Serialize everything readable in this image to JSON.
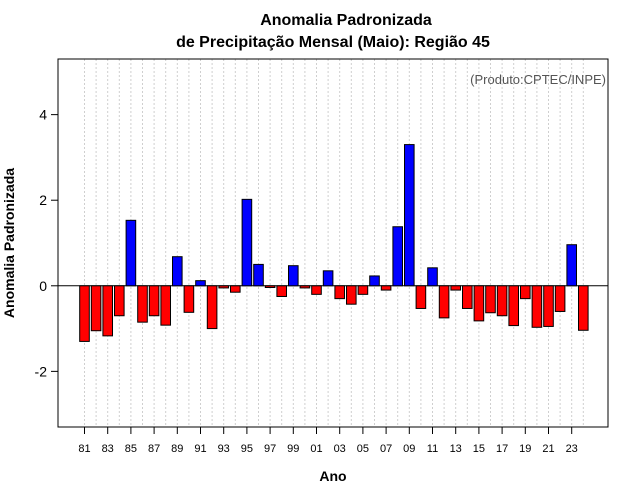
{
  "chart_data": {
    "type": "bar",
    "title": "Anomalia Padronizada",
    "subtitle": "de Precipitação Mensal (Maio): Região 45",
    "xlabel": "Ano",
    "ylabel": "Anomalia Padronizada",
    "annotation": "(Produto:CPTEC/INPE)",
    "ylim": [
      -3.3,
      5.3
    ],
    "yticks": [
      -2,
      0,
      2,
      4
    ],
    "grid": "vertical dotted",
    "colors": {
      "positive": "#0000ff",
      "negative": "#ff0000",
      "outline": "#000000"
    },
    "categories": [
      "1981",
      "1982",
      "1983",
      "1984",
      "1985",
      "1986",
      "1987",
      "1988",
      "1989",
      "1990",
      "1991",
      "1992",
      "1993",
      "1994",
      "1995",
      "1996",
      "1997",
      "1998",
      "1999",
      "2000",
      "2001",
      "2002",
      "2003",
      "2004",
      "2005",
      "2006",
      "2007",
      "2008",
      "2009",
      "2010",
      "2011",
      "2012",
      "2013",
      "2014",
      "2015",
      "2016",
      "2017",
      "2018",
      "2019",
      "2020",
      "2021",
      "2022",
      "2023",
      "2024"
    ],
    "x_tick_labels": [
      "81",
      "83",
      "85",
      "87",
      "89",
      "91",
      "93",
      "95",
      "97",
      "99",
      "01",
      "03",
      "05",
      "07",
      "09",
      "11",
      "13",
      "15",
      "17",
      "19",
      "21",
      "23"
    ],
    "values": [
      -1.3,
      -1.05,
      -1.17,
      -0.7,
      1.53,
      -0.85,
      -0.7,
      -0.92,
      0.68,
      -0.62,
      0.12,
      -1.0,
      -0.05,
      -0.15,
      2.02,
      0.5,
      -0.04,
      -0.25,
      0.47,
      -0.05,
      -0.2,
      0.35,
      -0.3,
      -0.43,
      -0.2,
      0.23,
      -0.1,
      1.38,
      3.3,
      -0.53,
      0.42,
      -0.75,
      -0.1,
      -0.53,
      -0.82,
      -0.63,
      -0.7,
      -0.93,
      -0.3,
      -0.97,
      -0.95,
      -0.6,
      0.96,
      -1.04
    ]
  }
}
